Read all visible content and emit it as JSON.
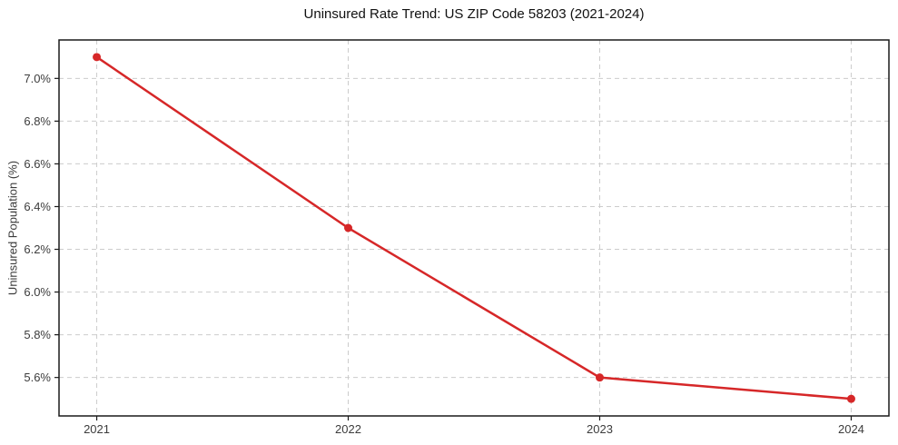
{
  "page": {
    "background": "#ffffff"
  },
  "chart_data": {
    "type": "line",
    "title": "Uninsured Rate Trend: US ZIP Code 58203 (2021-2024)",
    "xlabel": "",
    "ylabel": "Uninsured Population (%)",
    "x": [
      2021,
      2022,
      2023,
      2024
    ],
    "values": [
      7.1,
      6.3,
      5.6,
      5.5
    ],
    "xlim": [
      2020.85,
      2024.15
    ],
    "ylim": [
      5.42,
      7.18
    ],
    "xtick_values": [
      2021,
      2022,
      2023,
      2024
    ],
    "xtick_labels": [
      "2021",
      "2022",
      "2023",
      "2024"
    ],
    "ytick_values": [
      5.6,
      5.8,
      6.0,
      6.2,
      6.4,
      6.6,
      6.8,
      7.0
    ],
    "ytick_labels": [
      "5.6%",
      "5.8%",
      "6.0%",
      "6.2%",
      "6.4%",
      "6.6%",
      "6.8%",
      "7.0%"
    ],
    "grid": true,
    "grid_style": "dashed",
    "legend": "none",
    "colors": {
      "line": "#d62728",
      "marker": "#d62728",
      "grid": "#cccccc",
      "frame": "#1a1a1a",
      "tick_text": "#3c3c3c",
      "title_text": "#111111"
    },
    "line_width": 2.5,
    "marker_radius": 4.5
  }
}
